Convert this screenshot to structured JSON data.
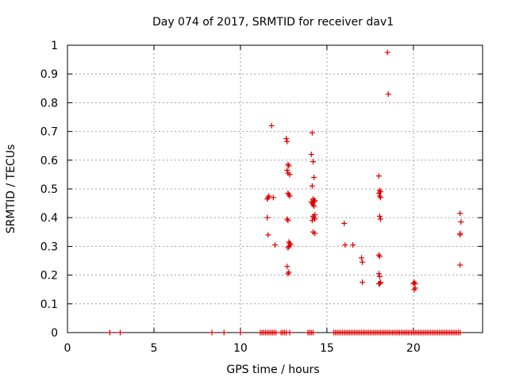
{
  "chart_data": {
    "type": "scatter",
    "title": "Day 074 of 2017, SRMTID for receiver dav1",
    "xlabel": "GPS time / hours",
    "ylabel": "SRMTID / TECUs",
    "xlim": [
      0,
      24
    ],
    "ylim": [
      0,
      1
    ],
    "x_ticks": [
      0,
      5,
      10,
      15,
      20
    ],
    "x_tick_labels": [
      "0",
      "5",
      "10",
      "15",
      "20"
    ],
    "y_ticks": [
      0,
      0.1,
      0.2,
      0.3,
      0.4,
      0.5,
      0.6,
      0.7,
      0.8,
      0.9,
      1
    ],
    "y_tick_labels": [
      "0",
      "0.1",
      "0.2",
      "0.3",
      "0.4",
      "0.5",
      "0.6",
      "0.7",
      "0.8",
      "0.9",
      "1"
    ],
    "grid": true,
    "marker": "+",
    "color": "#dd0000",
    "series": [
      {
        "name": "dav1",
        "x": [
          2.45,
          3.05,
          8.35,
          9.05,
          10.0,
          11.15,
          11.25,
          11.35,
          11.45,
          11.55,
          11.65,
          11.75,
          11.85,
          11.95,
          12.05,
          12.35,
          12.45,
          12.55,
          12.65,
          12.85,
          13.9,
          14.0,
          14.1,
          14.2,
          15.4,
          15.5,
          15.6,
          15.7,
          15.8,
          15.9,
          16.0,
          16.1,
          16.2,
          16.3,
          16.4,
          16.5,
          16.6,
          16.7,
          16.8,
          16.9,
          17.0,
          17.1,
          17.2,
          17.3,
          17.4,
          17.5,
          17.6,
          17.7,
          17.8,
          17.9,
          18.0,
          18.1,
          18.2,
          18.3,
          18.4,
          18.5,
          18.6,
          18.7,
          18.8,
          18.9,
          19.0,
          19.1,
          19.2,
          19.3,
          19.4,
          19.5,
          19.6,
          19.7,
          19.8,
          19.9,
          20.0,
          20.1,
          20.2,
          20.3,
          20.4,
          20.5,
          20.6,
          20.7,
          20.8,
          20.9,
          21.0,
          21.1,
          21.2,
          21.3,
          21.4,
          21.5,
          21.6,
          21.7,
          21.8,
          21.9,
          22.0,
          22.1,
          22.2,
          22.3,
          22.4,
          22.5,
          22.6,
          22.7,
          11.55,
          11.6,
          11.65,
          11.8,
          11.9,
          12.0,
          11.55,
          11.6,
          12.65,
          12.7,
          12.75,
          12.8,
          12.7,
          12.75,
          12.85,
          12.75,
          12.8,
          12.85,
          12.7,
          12.75,
          12.8,
          12.85,
          12.9,
          12.75,
          12.8,
          12.7,
          12.75,
          12.8,
          14.1,
          14.15,
          14.2,
          14.25,
          14.15,
          14.2,
          14.25,
          14.1,
          14.15,
          14.2,
          14.25,
          14.3,
          14.2,
          14.25,
          14.3,
          14.15,
          14.2,
          14.3,
          14.25,
          14.3,
          16.0,
          16.05,
          16.5,
          17.0,
          17.05,
          17.05,
          18.0,
          18.05,
          18.1,
          18.0,
          18.05,
          18.1,
          18.05,
          18.1,
          18.0,
          18.05,
          18.0,
          18.05,
          18.1,
          18.05,
          18.1,
          18.0,
          18.5,
          18.55,
          20.0,
          20.05,
          20.1,
          20.05,
          20.1,
          22.7,
          22.75,
          22.7,
          22.7,
          22.7
        ],
        "y": [
          0,
          0,
          0,
          0,
          0,
          0,
          0,
          0,
          0,
          0,
          0,
          0,
          0,
          0,
          0,
          0,
          0,
          0,
          0,
          0,
          0,
          0,
          0,
          0,
          0,
          0,
          0,
          0,
          0,
          0,
          0,
          0,
          0,
          0,
          0,
          0,
          0,
          0,
          0,
          0,
          0,
          0,
          0,
          0,
          0,
          0,
          0,
          0,
          0,
          0,
          0,
          0,
          0,
          0,
          0,
          0,
          0,
          0,
          0,
          0,
          0,
          0,
          0,
          0,
          0,
          0,
          0,
          0,
          0,
          0,
          0,
          0,
          0,
          0,
          0,
          0,
          0,
          0,
          0,
          0,
          0,
          0,
          0,
          0,
          0,
          0,
          0,
          0,
          0,
          0,
          0,
          0,
          0,
          0,
          0,
          0,
          0,
          0,
          0.465,
          0.47,
          0.475,
          0.72,
          0.47,
          0.305,
          0.4,
          0.34,
          0.675,
          0.665,
          0.585,
          0.58,
          0.565,
          0.555,
          0.55,
          0.485,
          0.48,
          0.475,
          0.395,
          0.39,
          0.315,
          0.31,
          0.305,
          0.295,
          0.3,
          0.23,
          0.205,
          0.21,
          0.62,
          0.695,
          0.595,
          0.54,
          0.51,
          0.465,
          0.46,
          0.455,
          0.45,
          0.445,
          0.44,
          0.41,
          0.405,
          0.4,
          0.395,
          0.39,
          0.35,
          0.345,
          0.455,
          0.46,
          0.38,
          0.305,
          0.305,
          0.26,
          0.245,
          0.175,
          0.545,
          0.495,
          0.49,
          0.485,
          0.475,
          0.47,
          0.405,
          0.395,
          0.27,
          0.265,
          0.205,
          0.195,
          0.175,
          0.17,
          0.175,
          0.17,
          0.975,
          0.83,
          0.17,
          0.175,
          0.17,
          0.15,
          0.155,
          0.415,
          0.385,
          0.345,
          0.34,
          0.235
        ]
      }
    ]
  }
}
